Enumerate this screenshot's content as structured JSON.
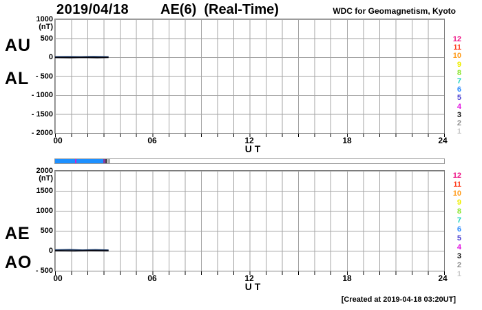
{
  "header": {
    "date": "2019/04/18",
    "title": "AE(6)  (Real-Time)",
    "credit": "WDC for Geomagnetism, Kyoto"
  },
  "footer": {
    "created": "[Created at 2019-04-18 03:20UT]"
  },
  "legend": {
    "description": "station-count color scale 12..1",
    "items": [
      {
        "label": "12",
        "color": "#ee1487"
      },
      {
        "label": "11",
        "color": "#ff4122"
      },
      {
        "label": "10",
        "color": "#ff9c1c"
      },
      {
        "label": "9",
        "color": "#eeee00"
      },
      {
        "label": "8",
        "color": "#8ce62e"
      },
      {
        "label": "7",
        "color": "#19d2be"
      },
      {
        "label": "6",
        "color": "#2e8cff"
      },
      {
        "label": "5",
        "color": "#5044d2"
      },
      {
        "label": "4",
        "color": "#e114e1"
      },
      {
        "label": "3",
        "color": "#141414"
      },
      {
        "label": "2",
        "color": "#8c8c8c"
      },
      {
        "label": "1",
        "color": "#c8c8c8"
      }
    ]
  },
  "progress_bar": {
    "segments": [
      {
        "from_hour": 0.0,
        "to_hour": 1.25,
        "color": "#1e90ff"
      },
      {
        "from_hour": 1.25,
        "to_hour": 1.32,
        "color": "#cc22cc"
      },
      {
        "from_hour": 1.32,
        "to_hour": 2.98,
        "color": "#1e90ff"
      },
      {
        "from_hour": 2.98,
        "to_hour": 3.12,
        "color": "#8a3a9a"
      },
      {
        "from_hour": 3.12,
        "to_hour": 3.25,
        "color": "#4a4a4a"
      },
      {
        "from_hour": 3.25,
        "to_hour": 3.38,
        "color": "#aaaaaa"
      }
    ]
  },
  "chart_data": [
    {
      "type": "line",
      "panel": "top",
      "left_labels": [
        "AU",
        "AL"
      ],
      "unit": "(nT)",
      "yticks": [
        "1000",
        "500",
        "0",
        "- 500",
        "- 1000",
        "- 1500",
        "- 2000"
      ],
      "xticks": [
        "00",
        "06",
        "12",
        "18",
        "24"
      ],
      "xlabel": "U T",
      "xlim": [
        0,
        24
      ],
      "ylim": [
        -2000,
        1000
      ],
      "grid": "on",
      "note": "data plotted only 00:00-03:20 UT, values near 0 nT",
      "series": [
        {
          "name": "AU",
          "color": "#1d3a66",
          "points": [
            {
              "x": 0,
              "y": 12
            },
            {
              "x": 0.8,
              "y": 15
            },
            {
              "x": 1.6,
              "y": 10
            },
            {
              "x": 2.4,
              "y": 16
            },
            {
              "x": 3.3,
              "y": 10
            }
          ]
        },
        {
          "name": "AL",
          "color": "#06060e",
          "points": [
            {
              "x": 0,
              "y": -10
            },
            {
              "x": 0.9,
              "y": -14
            },
            {
              "x": 1.8,
              "y": -8
            },
            {
              "x": 2.6,
              "y": -14
            },
            {
              "x": 3.3,
              "y": -8
            }
          ]
        }
      ]
    },
    {
      "type": "line",
      "panel": "bottom",
      "left_labels": [
        "AE",
        "AO"
      ],
      "unit": "(nT)",
      "yticks": [
        "2000",
        "1500",
        "1000",
        "500",
        "0",
        "- 500"
      ],
      "xticks": [
        "00",
        "06",
        "12",
        "18",
        "24"
      ],
      "xlabel": "U T",
      "xlim": [
        0,
        24
      ],
      "ylim": [
        -500,
        2000
      ],
      "grid": "on",
      "note": "data plotted only 00:00-03:20 UT, values near 0 nT",
      "series": [
        {
          "name": "AE",
          "color": "#1d3a66",
          "points": [
            {
              "x": 0,
              "y": 22
            },
            {
              "x": 0.9,
              "y": 28
            },
            {
              "x": 1.7,
              "y": 18
            },
            {
              "x": 2.5,
              "y": 26
            },
            {
              "x": 3.3,
              "y": 18
            }
          ]
        },
        {
          "name": "AO",
          "color": "#06060e",
          "points": [
            {
              "x": 0,
              "y": 0
            },
            {
              "x": 1.2,
              "y": -4
            },
            {
              "x": 2.2,
              "y": 2
            },
            {
              "x": 3.3,
              "y": -2
            }
          ]
        }
      ]
    }
  ]
}
